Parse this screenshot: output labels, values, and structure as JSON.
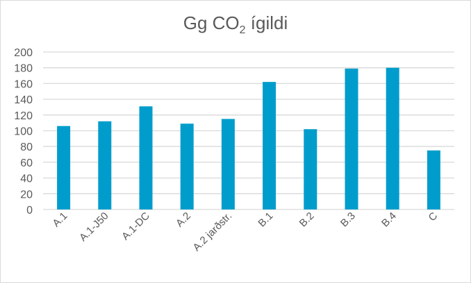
{
  "chart_data": {
    "type": "bar",
    "title": "Gg CO",
    "title_subscript": "2",
    "title_suffix": " ígildi",
    "categories": [
      "A.1",
      "A.1-J50",
      "A.1-DC",
      "A.2",
      "A.2 jarðstr.",
      "B.1",
      "B.2",
      "B.3",
      "B.4",
      "C"
    ],
    "values": [
      106,
      112,
      131,
      109,
      115,
      162,
      102,
      179,
      180,
      75
    ],
    "ylim": [
      0,
      200
    ],
    "yticks": [
      "0",
      "20",
      "40",
      "60",
      "80",
      "100",
      "120",
      "140",
      "160",
      "180",
      "200"
    ],
    "grid": true,
    "legend": "none",
    "bar_color": "#009dcc"
  }
}
